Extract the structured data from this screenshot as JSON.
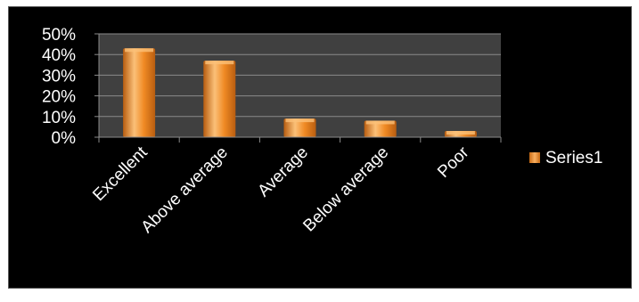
{
  "chart_data": {
    "type": "bar",
    "categories": [
      "Excellent",
      "Above average",
      "Average",
      "Below average",
      "Poor"
    ],
    "series": [
      {
        "name": "Series1",
        "values": [
          43,
          37,
          9,
          8,
          3
        ]
      }
    ],
    "ylim": [
      0,
      50
    ],
    "yticks": [
      "0%",
      "10%",
      "20%",
      "30%",
      "40%",
      "50%"
    ],
    "grid": true,
    "legend": "right",
    "colors": {
      "plot_bg": "#404040",
      "bar": "#f08a24",
      "bar_light": "#fbc078",
      "bar_dark": "#b85d10",
      "grid": "#8a8a8a",
      "text": "#ffffff"
    }
  }
}
